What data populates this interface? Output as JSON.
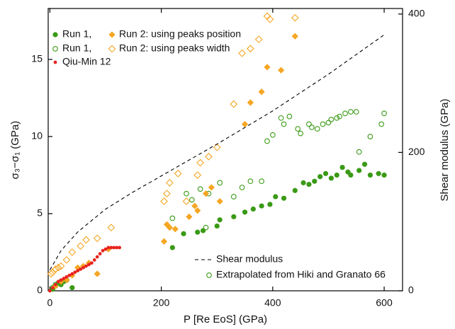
{
  "chart_data": {
    "type": "scatter",
    "x_label": "P [Re EoS] (GPa)",
    "y_label": "σ₃−σ₁ (GPa)",
    "y2_label": "Shear modulus (GPa)",
    "xlim": [
      -3,
      633
    ],
    "ylim": [
      0,
      18.3
    ],
    "y2lim": [
      0,
      408
    ],
    "xticks": [
      0,
      200,
      400,
      600
    ],
    "yticks": [
      0,
      5,
      10,
      15
    ],
    "y2ticks": [
      0,
      200,
      400
    ],
    "series": [
      {
        "name": "Run 1,",
        "color": "#3a9a16",
        "marker": "circle",
        "x": [
          5,
          10,
          15,
          20,
          25,
          40,
          220,
          240,
          265,
          275,
          300,
          305,
          330,
          350,
          365,
          380,
          395,
          405,
          420,
          440,
          455,
          465,
          475,
          485,
          495,
          505,
          515,
          525,
          535,
          540,
          555,
          565,
          575,
          590,
          600
        ],
        "values": [
          0.1,
          0.3,
          0.5,
          0.4,
          0.6,
          0.2,
          2.8,
          3.7,
          3.8,
          3.9,
          4.2,
          4.6,
          4.8,
          5.1,
          5.3,
          5.5,
          5.6,
          6.1,
          6.0,
          6.5,
          7.0,
          6.9,
          7.1,
          7.4,
          7.6,
          7.3,
          7.5,
          8.0,
          7.7,
          7.5,
          7.8,
          8.2,
          7.5,
          7.6,
          7.5
        ]
      },
      {
        "name": "Run 1,",
        "color": "#3a9a16",
        "marker": "circle-open",
        "x": [
          5,
          10,
          20,
          30,
          220,
          245,
          255,
          270,
          280,
          285,
          305,
          330,
          345,
          360,
          380,
          390,
          400,
          415,
          420,
          430,
          445,
          450,
          465,
          470,
          480,
          490,
          500,
          505,
          515,
          520,
          530,
          540,
          550,
          555,
          575,
          595,
          600
        ],
        "values": [
          0.2,
          0.4,
          0.6,
          0.7,
          4.7,
          6.3,
          5.9,
          6.6,
          4.1,
          6.3,
          7.0,
          6.1,
          6.7,
          7.1,
          7.1,
          9.7,
          10.1,
          11.2,
          10.8,
          11.3,
          10.5,
          10.2,
          10.8,
          10.6,
          10.5,
          10.8,
          10.9,
          11.1,
          11.2,
          11.3,
          11.5,
          11.6,
          11.6,
          9.0,
          10.0,
          10.8,
          11.5
        ]
      },
      {
        "name": "Run 2: using peaks position",
        "color": "#f5a623",
        "marker": "diamond",
        "x": [
          10,
          20,
          30,
          40,
          50,
          60,
          70,
          85,
          105,
          205,
          210,
          215,
          225,
          250,
          260,
          265,
          280,
          290,
          305,
          350,
          360,
          380,
          390,
          415,
          440
        ],
        "values": [
          0.3,
          0.6,
          0.7,
          1.0,
          1.5,
          1.6,
          1.8,
          1.1,
          2.7,
          3.2,
          4.3,
          4.1,
          4.0,
          4.8,
          5.5,
          5.2,
          6.3,
          6.7,
          5.8,
          10.8,
          12.2,
          12.9,
          14.5,
          14.3,
          16.5
        ]
      },
      {
        "name": "Run 2: using peaks width",
        "color": "#f5a623",
        "marker": "diamond-open",
        "x": [
          2,
          5,
          10,
          15,
          20,
          30,
          40,
          55,
          65,
          85,
          110,
          205,
          210,
          215,
          230,
          245,
          265,
          270,
          285,
          300,
          330,
          345,
          360,
          375,
          390,
          395,
          440
        ],
        "values": [
          1.1,
          1.2,
          1.4,
          1.5,
          1.6,
          2.0,
          2.5,
          2.9,
          3.3,
          3.4,
          4.1,
          5.8,
          6.3,
          7.0,
          7.6,
          5.8,
          7.5,
          8.3,
          8.7,
          9.3,
          12.1,
          15.4,
          15.7,
          16.3,
          17.8,
          17.6,
          17.7
        ]
      },
      {
        "name": "Qiu-Min 12",
        "color": "#e8231e",
        "marker": "dot",
        "x": [
          0,
          5,
          10,
          15,
          20,
          25,
          30,
          35,
          40,
          45,
          50,
          55,
          60,
          65,
          70,
          75,
          80,
          85,
          90,
          95,
          100,
          105,
          110,
          115,
          120,
          125
        ],
        "values": [
          0,
          0.2,
          0.4,
          0.6,
          0.7,
          0.8,
          0.9,
          1.0,
          1.1,
          1.2,
          1.3,
          1.4,
          1.5,
          1.6,
          1.7,
          1.8,
          2.0,
          2.2,
          2.4,
          2.6,
          2.7,
          2.8,
          2.8,
          2.8,
          2.8,
          2.8
        ]
      },
      {
        "name": "Shear modulus",
        "color": "#000000",
        "marker": "dashed-line",
        "axis": "y2",
        "x": [
          0,
          20,
          50,
          100,
          150,
          200,
          300,
          400,
          500,
          600
        ],
        "values": [
          30,
          58,
          85,
          118,
          143,
          166,
          212,
          260,
          313,
          370
        ]
      }
    ],
    "legend_extra": [
      {
        "name": "Extrapolated from Hiki and Granato 66",
        "color": "#3a9a16",
        "marker": "circle-open"
      }
    ]
  }
}
